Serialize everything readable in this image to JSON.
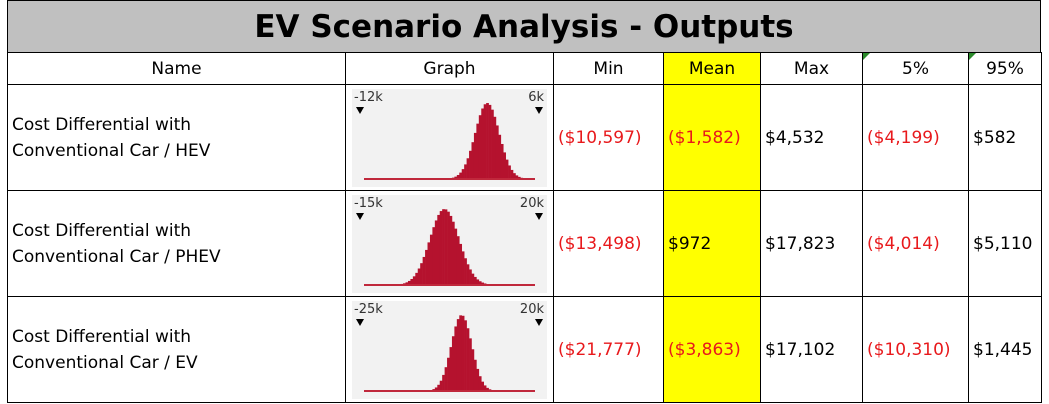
{
  "header": {
    "title": "EV Scenario Analysis - Outputs"
  },
  "table": {
    "columns": [
      "Name",
      "Graph",
      "Min",
      "Mean",
      "Max",
      "5%",
      "95%"
    ],
    "rows": [
      {
        "name": "Cost Differential with Conventional Car / HEV",
        "graph": {
          "left": "-12k",
          "right": "6k"
        },
        "min": "($10,597)",
        "mean": "($1,582)",
        "max": "$4,532",
        "p5": "($4,199)",
        "p95": "$582"
      },
      {
        "name": "Cost Differential with Conventional Car / PHEV",
        "graph": {
          "left": "-15k",
          "right": "20k"
        },
        "min": "($13,498)",
        "mean": "$972",
        "max": "$17,823",
        "p5": "($4,014)",
        "p95": "$5,110"
      },
      {
        "name": "Cost Differential with Conventional Car / EV",
        "graph": {
          "left": "-25k",
          "right": "20k"
        },
        "min": "($21,777)",
        "mean": "($3,863)",
        "max": "$17,102",
        "p5": "($10,310)",
        "p95": "$1,445"
      }
    ]
  }
}
